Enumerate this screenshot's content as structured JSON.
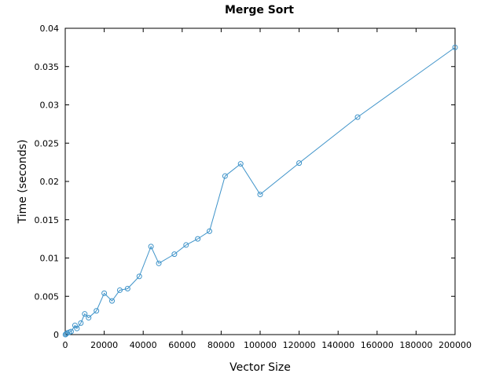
{
  "chart_data": {
    "type": "line",
    "title": "Merge Sort",
    "xlabel": "Vector Size",
    "ylabel": "Time (seconds)",
    "xlim": [
      0,
      200000
    ],
    "ylim": [
      0,
      0.04
    ],
    "x_ticks": [
      "0",
      "20000",
      "40000",
      "60000",
      "80000",
      "100000",
      "120000",
      "140000",
      "160000",
      "180000",
      "200000"
    ],
    "y_ticks": [
      "0",
      "0.005",
      "0.01",
      "0.015",
      "0.02",
      "0.025",
      "0.03",
      "0.035",
      "0.04"
    ],
    "grid": false,
    "legend": "none",
    "series": [
      {
        "color": "#3e93c9",
        "marker": "circle",
        "points": [
          {
            "x": 100,
            "y": 0.0
          },
          {
            "x": 500,
            "y": 0.0001
          },
          {
            "x": 1000,
            "y": 0.0002
          },
          {
            "x": 2000,
            "y": 0.0003
          },
          {
            "x": 3000,
            "y": 0.0004
          },
          {
            "x": 5000,
            "y": 0.0012
          },
          {
            "x": 6000,
            "y": 0.0008
          },
          {
            "x": 8000,
            "y": 0.0015
          },
          {
            "x": 10000,
            "y": 0.0027
          },
          {
            "x": 12000,
            "y": 0.0022
          },
          {
            "x": 16000,
            "y": 0.0031
          },
          {
            "x": 20000,
            "y": 0.0054
          },
          {
            "x": 24000,
            "y": 0.0044
          },
          {
            "x": 28000,
            "y": 0.0058
          },
          {
            "x": 32000,
            "y": 0.006
          },
          {
            "x": 38000,
            "y": 0.0076
          },
          {
            "x": 44000,
            "y": 0.0115
          },
          {
            "x": 48000,
            "y": 0.0093
          },
          {
            "x": 56000,
            "y": 0.0105
          },
          {
            "x": 62000,
            "y": 0.0117
          },
          {
            "x": 68000,
            "y": 0.0125
          },
          {
            "x": 74000,
            "y": 0.0135
          },
          {
            "x": 82000,
            "y": 0.0207
          },
          {
            "x": 90000,
            "y": 0.0223
          },
          {
            "x": 100000,
            "y": 0.0183
          },
          {
            "x": 120000,
            "y": 0.0224
          },
          {
            "x": 150000,
            "y": 0.0284
          },
          {
            "x": 200000,
            "y": 0.0375
          }
        ]
      }
    ]
  }
}
